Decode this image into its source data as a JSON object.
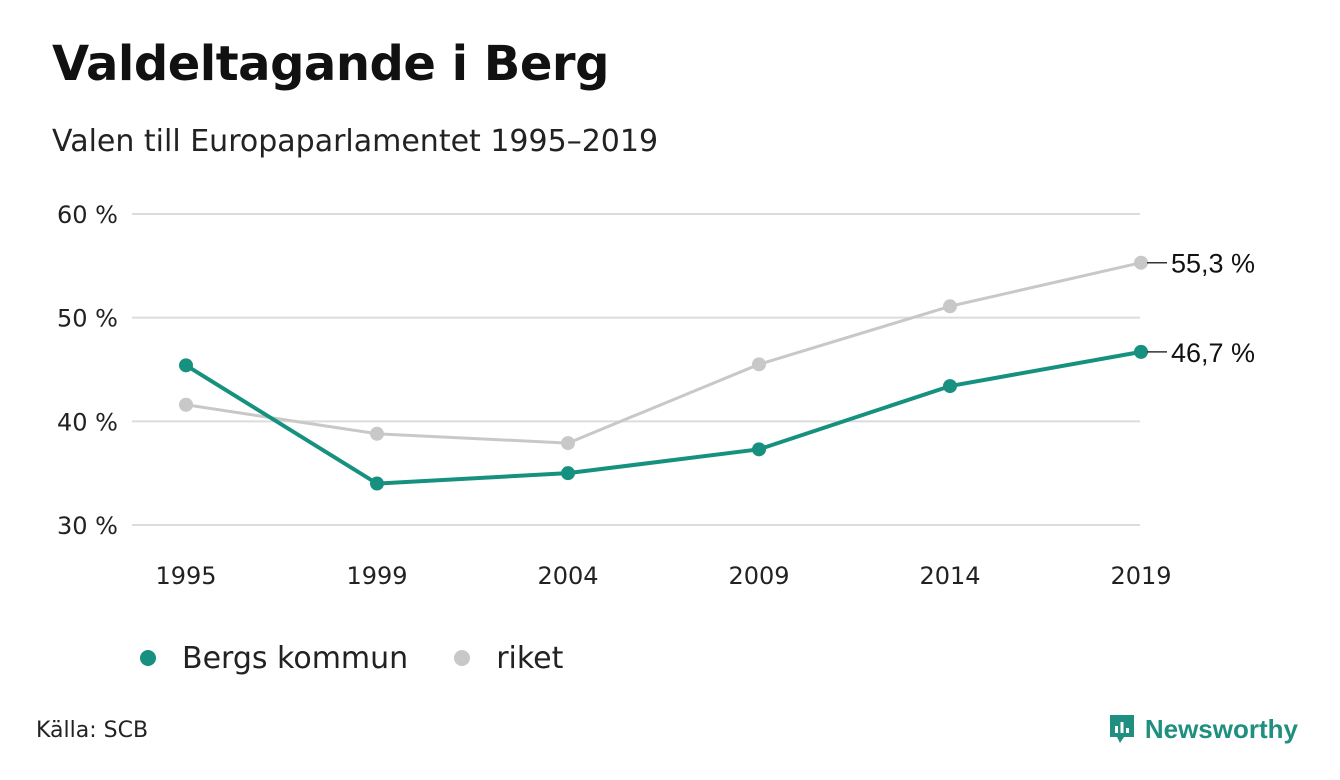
{
  "title": "Valdeltagande i Berg",
  "subtitle": "Valen till Europaparlamentet 1995–2019",
  "source": "Källa: SCB",
  "brand": "Newsworthy",
  "brand_icon": "newsworthy-logo-icon",
  "colors": {
    "bergs": "#17917f",
    "riket": "#c8c8c8",
    "grid": "#dcdcdc"
  },
  "legend": [
    {
      "label": "Bergs kommun",
      "color": "#17917f"
    },
    {
      "label": "riket",
      "color": "#c8c8c8"
    }
  ],
  "chart_data": {
    "type": "line",
    "title": "Valdeltagande i Berg",
    "subtitle": "Valen till Europaparlamentet 1995–2019",
    "categories": [
      "1995",
      "1999",
      "2004",
      "2009",
      "2014",
      "2019"
    ],
    "series": [
      {
        "name": "Bergs kommun",
        "color": "#17917f",
        "values": [
          45.4,
          34.0,
          35.0,
          37.3,
          43.4,
          46.7
        ]
      },
      {
        "name": "riket",
        "color": "#c8c8c8",
        "values": [
          41.6,
          38.8,
          37.9,
          45.5,
          51.1,
          55.3
        ]
      }
    ],
    "end_labels": [
      "46,7 %",
      "55,3 %"
    ],
    "ylim": [
      30,
      60
    ],
    "yticks": [
      30,
      40,
      50,
      60
    ],
    "ytick_labels": [
      "30 %",
      "40 %",
      "50 %",
      "60 %"
    ],
    "xlabel": "",
    "ylabel": "",
    "grid": true,
    "legend_position": "bottom-left"
  }
}
